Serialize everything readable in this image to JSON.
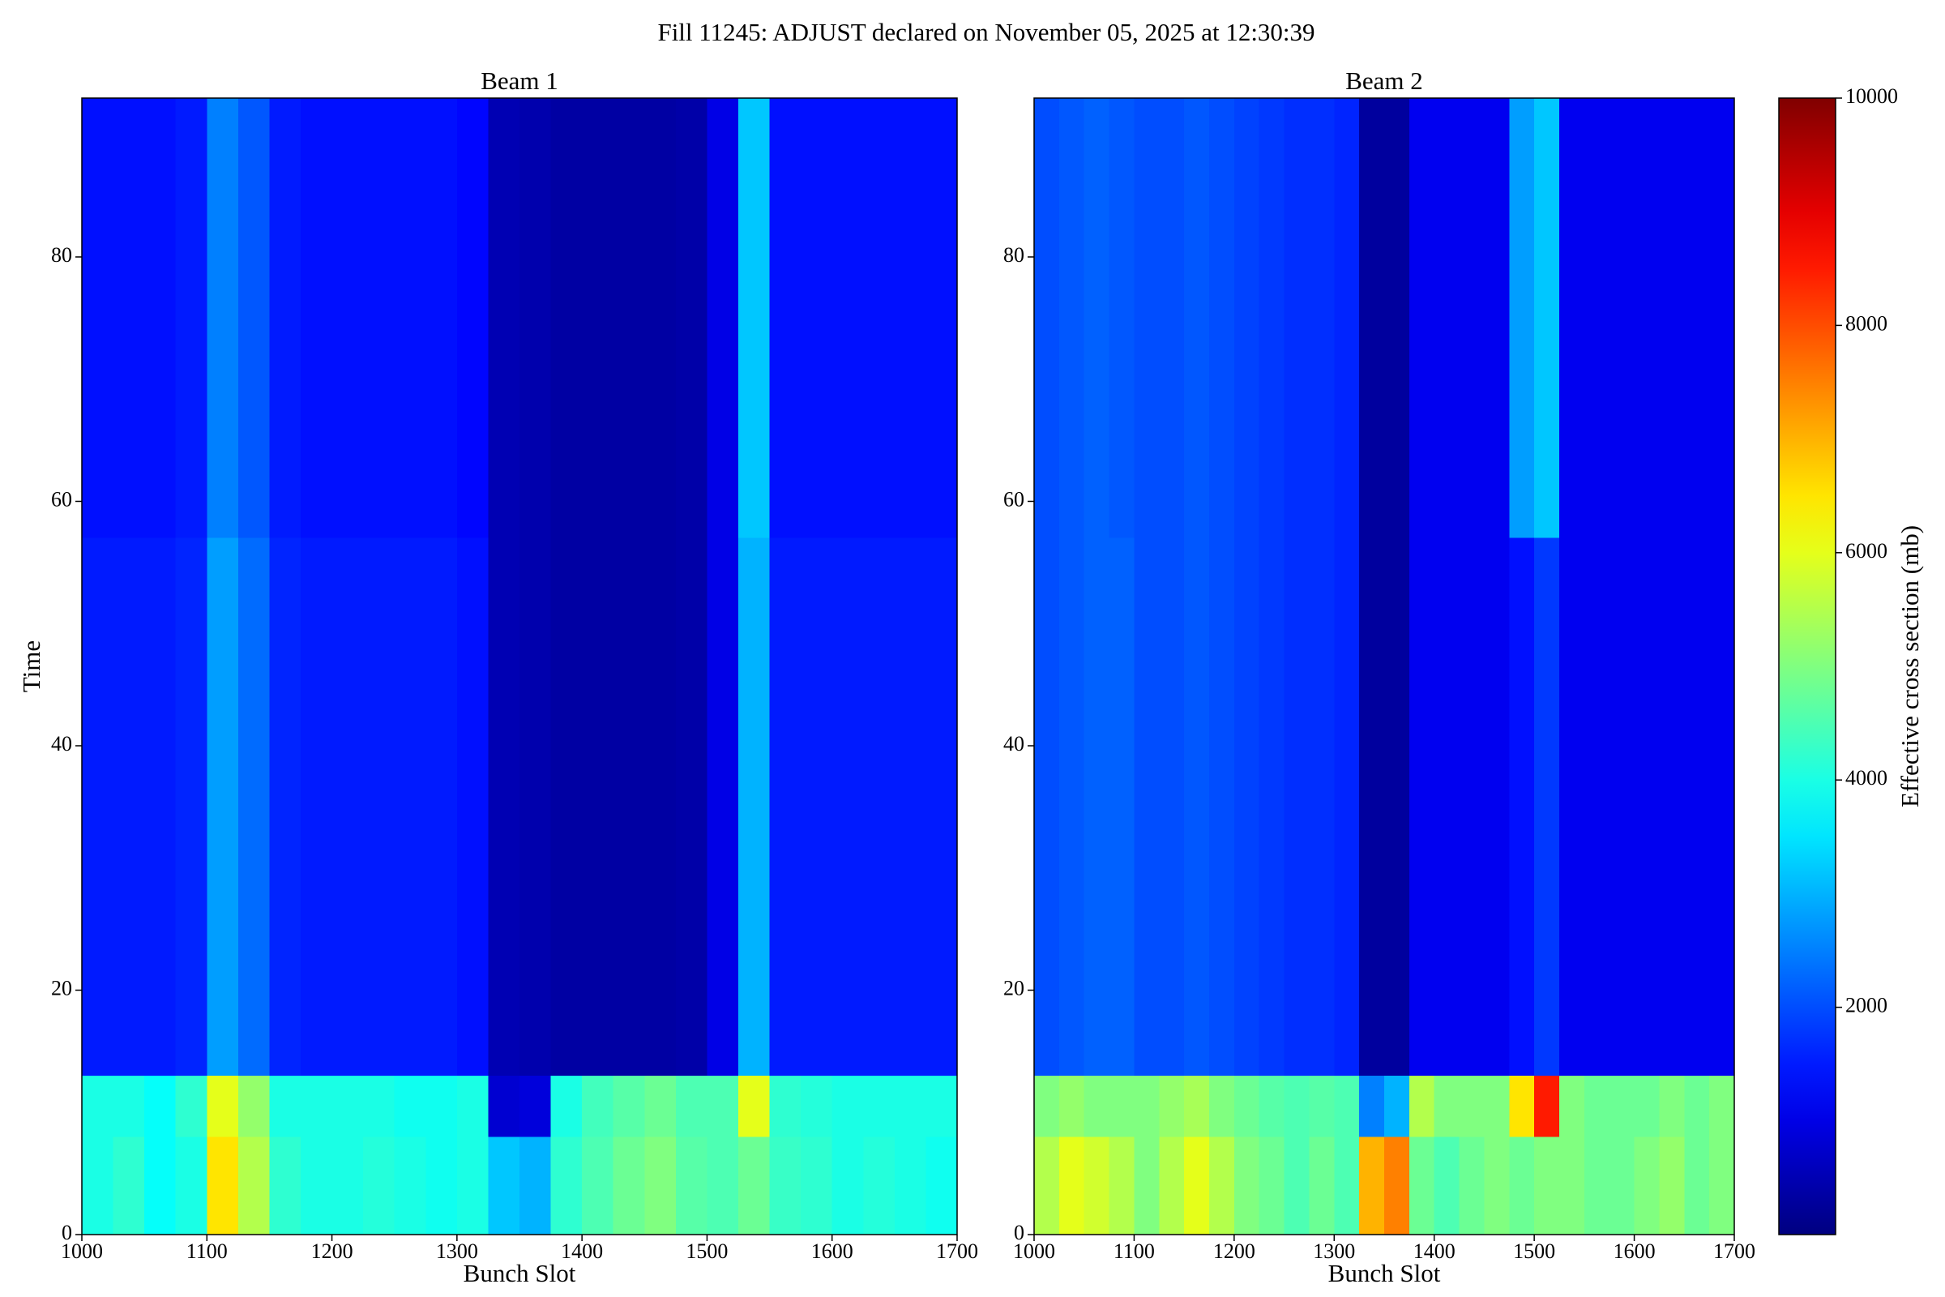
{
  "title": "Fill 11245: ADJUST declared on November 05, 2025 at 12:30:39",
  "colorbar": {
    "label": "Effective cross section (mb)",
    "colormap": "jet",
    "zlim": [
      0,
      10000
    ],
    "ticks": [
      2000,
      4000,
      6000,
      8000,
      10000
    ]
  },
  "chart_data": [
    {
      "type": "heatmap",
      "title": "Beam 1",
      "xlabel": "Bunch Slot",
      "ylabel": "Time",
      "xlim": [
        1000,
        1700
      ],
      "ylim": [
        0,
        93
      ],
      "xticks": [
        1000,
        1100,
        1200,
        1300,
        1400,
        1500,
        1600,
        1700
      ],
      "yticks": [
        0,
        20,
        40,
        60,
        80
      ],
      "xbins": [
        1000,
        1025,
        1050,
        1075,
        1100,
        1125,
        1150,
        1175,
        1200,
        1225,
        1250,
        1275,
        1300,
        1325,
        1350,
        1375,
        1400,
        1425,
        1450,
        1475,
        1500,
        1525,
        1550,
        1575,
        1600,
        1625,
        1650,
        1675,
        1700
      ],
      "ybins": [
        0,
        8,
        13,
        57,
        93
      ],
      "values": [
        [
          4000,
          4200,
          3800,
          4000,
          6500,
          5500,
          4200,
          4000,
          4000,
          4100,
          4000,
          3900,
          4000,
          3200,
          3000,
          4200,
          4500,
          4800,
          5000,
          4600,
          4500,
          4800,
          4300,
          4200,
          4000,
          4100,
          4000,
          3900
        ],
        [
          4000,
          4000,
          3800,
          4200,
          6000,
          5200,
          4000,
          4000,
          4000,
          4000,
          3900,
          3900,
          4000,
          800,
          900,
          4000,
          4400,
          4600,
          4800,
          4500,
          4500,
          6000,
          4200,
          4100,
          4000,
          4000,
          4000,
          4000
        ],
        [
          1500,
          1500,
          1500,
          1600,
          2800,
          2300,
          1600,
          1500,
          1500,
          1500,
          1500,
          1500,
          1400,
          500,
          450,
          350,
          350,
          350,
          350,
          400,
          1000,
          3000,
          1500,
          1500,
          1500,
          1500,
          1500,
          1500
        ],
        [
          1400,
          1400,
          1400,
          1500,
          2500,
          2100,
          1500,
          1400,
          1400,
          1400,
          1400,
          1400,
          1300,
          500,
          450,
          350,
          350,
          350,
          350,
          400,
          1000,
          3200,
          1400,
          1400,
          1400,
          1400,
          1400,
          1400
        ]
      ]
    },
    {
      "type": "heatmap",
      "title": "Beam 2",
      "xlabel": "Bunch Slot",
      "xlim": [
        1000,
        1700
      ],
      "ylim": [
        0,
        93
      ],
      "xticks": [
        1000,
        1100,
        1200,
        1300,
        1400,
        1500,
        1600,
        1700
      ],
      "yticks": [
        0,
        20,
        40,
        60,
        80
      ],
      "xbins": [
        1000,
        1025,
        1050,
        1075,
        1100,
        1125,
        1150,
        1175,
        1200,
        1225,
        1250,
        1275,
        1300,
        1325,
        1350,
        1375,
        1400,
        1425,
        1450,
        1475,
        1500,
        1525,
        1550,
        1575,
        1600,
        1625,
        1650,
        1675,
        1700
      ],
      "ybins": [
        0,
        8,
        13,
        57,
        93
      ],
      "values": [
        [
          5500,
          6000,
          5800,
          5500,
          5000,
          5500,
          6000,
          5500,
          5000,
          4800,
          4500,
          4800,
          4500,
          7000,
          7500,
          4800,
          4500,
          4800,
          5000,
          4800,
          5000,
          5000,
          4800,
          4800,
          5000,
          5200,
          4800,
          5000
        ],
        [
          5000,
          5200,
          5000,
          5000,
          5000,
          5200,
          5400,
          5000,
          4800,
          4600,
          4500,
          4600,
          4500,
          2500,
          3000,
          5500,
          5000,
          5000,
          5000,
          6500,
          8500,
          5000,
          4800,
          4800,
          4800,
          5000,
          4800,
          5000
        ],
        [
          2000,
          2100,
          2200,
          2200,
          2000,
          2000,
          2100,
          2000,
          1900,
          1800,
          1700,
          1700,
          1600,
          300,
          300,
          1100,
          1100,
          1100,
          1100,
          1400,
          1800,
          1100,
          1100,
          1100,
          1100,
          1100,
          1100,
          1100
        ],
        [
          2000,
          2100,
          2200,
          2100,
          2000,
          2000,
          2100,
          2000,
          1900,
          1800,
          1700,
          1700,
          1600,
          300,
          300,
          1100,
          1100,
          1100,
          1100,
          2800,
          3200,
          1100,
          1100,
          1100,
          1100,
          1100,
          1100,
          1100
        ]
      ]
    }
  ]
}
